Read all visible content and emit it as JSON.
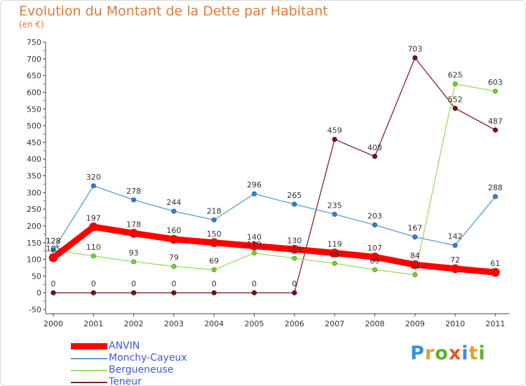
{
  "title": "Evolution du Montant de la Dette par Habitant",
  "unit_label": "(en €)",
  "logo": {
    "letters": [
      {
        "ch": "P",
        "color": "#3a8fd6"
      },
      {
        "ch": "r",
        "color": "#e8a020"
      },
      {
        "ch": "o",
        "color": "#5bb030"
      },
      {
        "ch": "x",
        "color": "#e05a20"
      },
      {
        "ch": "i",
        "color": "#3a8fd6"
      },
      {
        "ch": "t",
        "color": "#e8a020"
      },
      {
        "ch": "i",
        "color": "#5bb030"
      }
    ]
  },
  "chart_data": {
    "type": "line",
    "title": "Evolution du Montant de la Dette par Habitant",
    "ylabel": "(en €)",
    "xlabel": "",
    "x": [
      "2000",
      "2001",
      "2002",
      "2003",
      "2004",
      "2005",
      "2006",
      "2007",
      "2008",
      "2009",
      "2010",
      "2011"
    ],
    "ylim": [
      -50,
      750
    ],
    "yticks": [
      -50,
      0,
      50,
      100,
      150,
      200,
      250,
      300,
      350,
      400,
      450,
      500,
      550,
      600,
      650,
      700,
      750
    ],
    "grid": false,
    "legend_position": "bottom-left",
    "series": [
      {
        "name": "ANVIN",
        "color": "#ff0000",
        "values": [
          105,
          197,
          178,
          160,
          150,
          140,
          130,
          119,
          107,
          84,
          72,
          61
        ],
        "labels": [
          "105",
          "197",
          "178",
          "160",
          "150",
          "140",
          "130",
          "119",
          "107",
          "84",
          "72",
          "61"
        ]
      },
      {
        "name": "Monchy-Cayeux",
        "color": "#5b9bd5",
        "values": [
          128,
          320,
          278,
          244,
          218,
          296,
          265,
          235,
          203,
          167,
          142,
          288
        ],
        "labels": [
          "128",
          "320",
          "278",
          "244",
          "218",
          "296",
          "265",
          "235",
          "203",
          "167",
          "142",
          "288"
        ]
      },
      {
        "name": "Bergueneuse",
        "color": "#99dd66",
        "values": [
          128,
          110,
          93,
          79,
          69,
          119,
          103,
          88,
          69,
          54,
          625,
          603
        ],
        "labels": [
          "128",
          "110",
          "93",
          "79",
          "69",
          "119",
          "103",
          "88",
          "69",
          "54",
          "625",
          "603"
        ]
      },
      {
        "name": "Teneur",
        "color": "#7b2626",
        "values": [
          0,
          0,
          0,
          0,
          0,
          0,
          0,
          459,
          408,
          703,
          552,
          487
        ],
        "labels": [
          "0",
          "0",
          "0",
          "0",
          "0",
          "0",
          "0",
          "459",
          "408",
          "703",
          "552",
          "487"
        ]
      }
    ]
  }
}
